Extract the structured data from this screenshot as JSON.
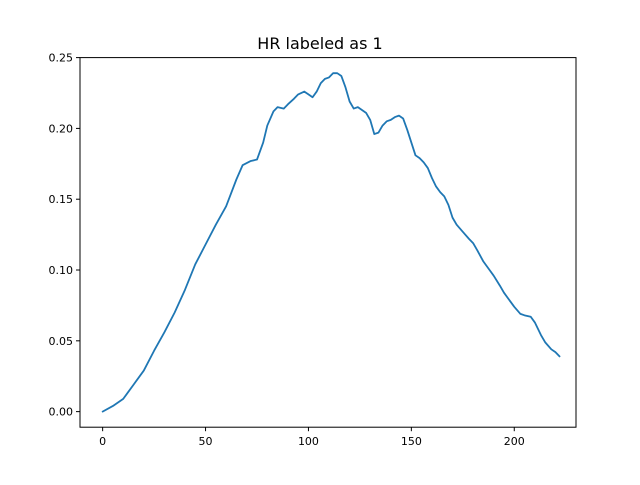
{
  "chart_data": {
    "type": "line",
    "title": "HR labeled as 1",
    "xlabel": "",
    "ylabel": "",
    "xlim": [
      -11,
      230
    ],
    "ylim": [
      -0.011,
      0.25
    ],
    "xticks": [
      0,
      50,
      100,
      150,
      200
    ],
    "xtick_labels": [
      "0",
      "50",
      "100",
      "150",
      "200"
    ],
    "yticks": [
      0.0,
      0.05,
      0.1,
      0.15,
      0.2,
      0.25
    ],
    "ytick_labels": [
      "0.00",
      "0.05",
      "0.10",
      "0.15",
      "0.20",
      "0.25"
    ],
    "grid": false,
    "legend": "none",
    "color": "#1f77b4",
    "series": [
      {
        "x": [
          0,
          5,
          10,
          15,
          20,
          25,
          30,
          35,
          40,
          45,
          50,
          55,
          60,
          65,
          68,
          72,
          75,
          78,
          80,
          83,
          85,
          88,
          90,
          93,
          95,
          98,
          100,
          102,
          104,
          106,
          108,
          110,
          112,
          114,
          116,
          118,
          120,
          122,
          124,
          126,
          128,
          130,
          132,
          134,
          136,
          138,
          140,
          142,
          144,
          146,
          148,
          150,
          152,
          154,
          156,
          158,
          160,
          162,
          164,
          166,
          168,
          170,
          172,
          175,
          178,
          180,
          182,
          185,
          188,
          190,
          193,
          195,
          198,
          200,
          203,
          205,
          208,
          210,
          213,
          215,
          218,
          220,
          222
        ],
        "y": [
          0.0,
          0.004,
          0.009,
          0.019,
          0.029,
          0.043,
          0.056,
          0.07,
          0.086,
          0.104,
          0.118,
          0.132,
          0.145,
          0.164,
          0.174,
          0.177,
          0.178,
          0.19,
          0.202,
          0.212,
          0.215,
          0.214,
          0.217,
          0.221,
          0.224,
          0.226,
          0.224,
          0.222,
          0.226,
          0.232,
          0.235,
          0.236,
          0.239,
          0.239,
          0.237,
          0.229,
          0.219,
          0.214,
          0.215,
          0.213,
          0.211,
          0.206,
          0.196,
          0.197,
          0.202,
          0.205,
          0.206,
          0.208,
          0.209,
          0.207,
          0.199,
          0.19,
          0.181,
          0.179,
          0.176,
          0.172,
          0.165,
          0.159,
          0.155,
          0.152,
          0.146,
          0.137,
          0.132,
          0.127,
          0.122,
          0.119,
          0.114,
          0.106,
          0.1,
          0.096,
          0.089,
          0.084,
          0.078,
          0.074,
          0.069,
          0.068,
          0.067,
          0.063,
          0.054,
          0.049,
          0.044,
          0.042,
          0.039
        ]
      }
    ]
  }
}
